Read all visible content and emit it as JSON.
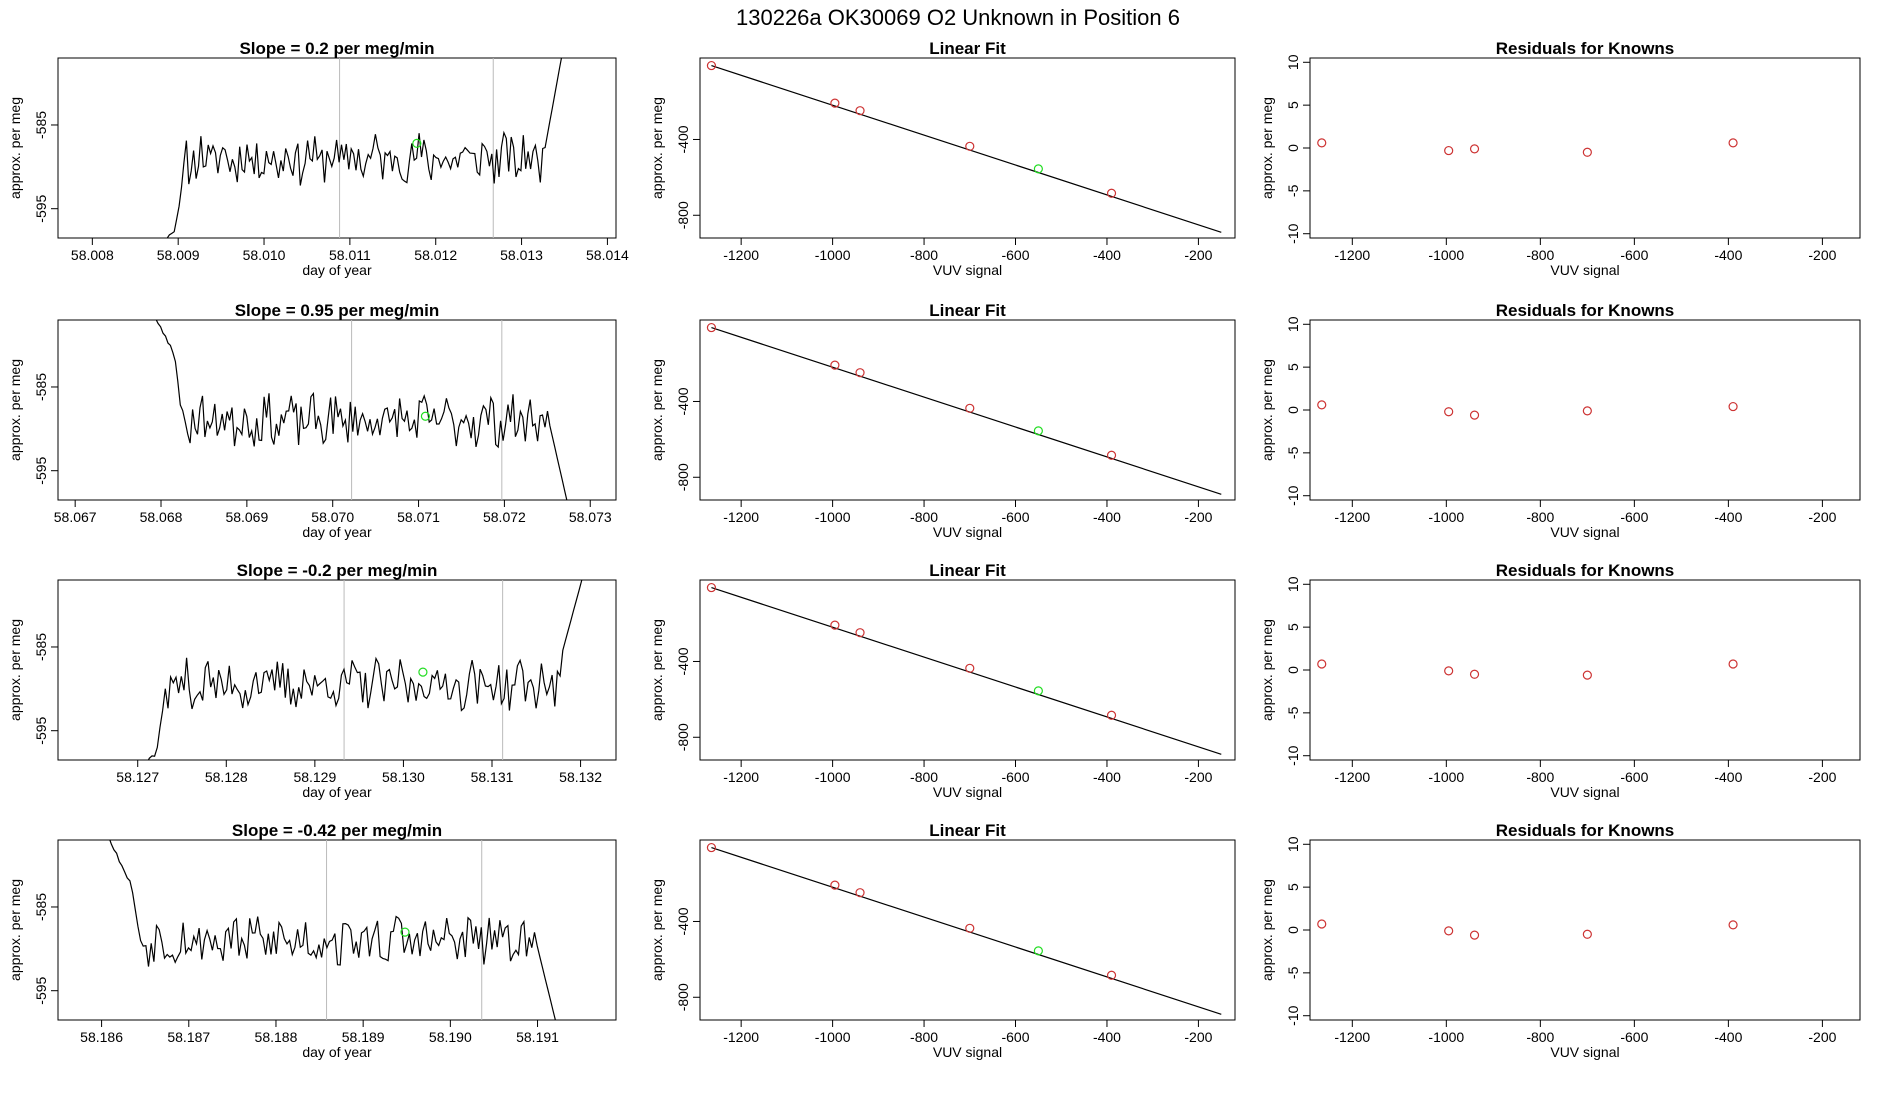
{
  "page": {
    "main_title": "130226a      OK30069    O2 Unknown in Position  6"
  },
  "colors": {
    "line": "#000000",
    "known_point": "#cd3333",
    "unknown_point": "#22dd22",
    "vline": "#bbbbbb"
  },
  "chart_data": [
    {
      "type": "line",
      "row": 0,
      "title": "Slope =  0.2  per meg/min",
      "xlabel": "day of year",
      "ylabel": "approx. per meg",
      "xlim": [
        58.0076,
        58.0141
      ],
      "ylim": [
        -598.5,
        -577
      ],
      "xticks": [
        "58.008",
        "58.009",
        "58.010",
        "58.011",
        "58.012",
        "58.013",
        "58.014"
      ],
      "yticks": [
        "-585",
        "-595"
      ],
      "vlines": [
        58.01088,
        58.01267
      ],
      "unknown_point": [
        58.01178,
        -587.2
      ],
      "start_x": 58.0087,
      "end_x": 58.0135,
      "start_y": [
        -600,
        -596.5
      ],
      "end_y": [
        -588.5,
        -575
      ],
      "base": -589.0,
      "seed": 11
    },
    {
      "type": "line",
      "row": 0,
      "title": "Linear Fit",
      "xlabel": "VUV signal",
      "ylabel": "approx. per meg",
      "xlim": [
        -1290,
        -120
      ],
      "ylim": [
        -920,
        30
      ],
      "xticks": [
        "-1200",
        "-1000",
        "-800",
        "-600",
        "-400",
        "-200"
      ],
      "yticks": [
        "-400",
        "-800"
      ],
      "fit_line": [
        [
          -1265,
          -10
        ],
        [
          -150,
          -890
        ]
      ],
      "knowns": [
        [
          -1265,
          -10
        ],
        [
          -995,
          -208
        ],
        [
          -940,
          -248
        ],
        [
          -700,
          -436
        ],
        [
          -390,
          -684
        ]
      ],
      "unknown": [
        -550,
        -555
      ]
    },
    {
      "type": "scatter",
      "row": 0,
      "title": "Residuals for Knowns",
      "xlabel": "VUV signal",
      "ylabel": "approx. per meg",
      "xlim": [
        -1290,
        -120
      ],
      "ylim": [
        -10.5,
        10.5
      ],
      "xticks": [
        "-1200",
        "-1000",
        "-800",
        "-600",
        "-400",
        "-200"
      ],
      "yticks": [
        "10",
        "5",
        "0",
        "-5",
        "-10"
      ],
      "points": [
        [
          -1265,
          0.6
        ],
        [
          -995,
          -0.3
        ],
        [
          -940,
          -0.1
        ],
        [
          -700,
          -0.5
        ],
        [
          -390,
          0.6
        ]
      ]
    },
    {
      "type": "line",
      "row": 1,
      "title": "Slope =  0.95  per meg/min",
      "xlabel": "day of year",
      "ylabel": "approx. per meg",
      "xlim": [
        58.0668,
        58.0733
      ],
      "ylim": [
        -598.5,
        -577
      ],
      "xticks": [
        "58.067",
        "58.068",
        "58.069",
        "58.070",
        "58.071",
        "58.072",
        "58.073"
      ],
      "yticks": [
        "-585",
        "-595"
      ],
      "vlines": [
        58.07022,
        58.07197
      ],
      "unknown_point": [
        58.07108,
        -588.5
      ],
      "start_x": 58.06788,
      "end_x": 58.07276,
      "start_y": [
        -576,
        -583
      ],
      "end_y": [
        -589,
        -600
      ],
      "base": -589.0,
      "seed": 23
    },
    {
      "type": "line",
      "row": 1,
      "title": "Linear Fit",
      "xlabel": "VUV signal",
      "ylabel": "approx. per meg",
      "xlim": [
        -1290,
        -120
      ],
      "ylim": [
        -920,
        30
      ],
      "xticks": [
        "-1200",
        "-1000",
        "-800",
        "-600",
        "-400",
        "-200"
      ],
      "yticks": [
        "-400",
        "-800"
      ],
      "fit_line": [
        [
          -1265,
          -10
        ],
        [
          -150,
          -890
        ]
      ],
      "knowns": [
        [
          -1265,
          -10
        ],
        [
          -995,
          -208
        ],
        [
          -940,
          -248
        ],
        [
          -700,
          -436
        ],
        [
          -390,
          -684
        ]
      ],
      "unknown": [
        -550,
        -555
      ]
    },
    {
      "type": "scatter",
      "row": 1,
      "title": "Residuals for Knowns",
      "xlabel": "VUV signal",
      "ylabel": "approx. per meg",
      "xlim": [
        -1290,
        -120
      ],
      "ylim": [
        -10.5,
        10.5
      ],
      "xticks": [
        "-1200",
        "-1000",
        "-800",
        "-600",
        "-400",
        "-200"
      ],
      "yticks": [
        "10",
        "5",
        "0",
        "-5",
        "-10"
      ],
      "points": [
        [
          -1265,
          0.6
        ],
        [
          -995,
          -0.2
        ],
        [
          -940,
          -0.6
        ],
        [
          -700,
          -0.1
        ],
        [
          -390,
          0.4
        ]
      ]
    },
    {
      "type": "line",
      "row": 2,
      "title": "Slope =  -0.2  per meg/min",
      "xlabel": "day of year",
      "ylabel": "approx. per meg",
      "xlim": [
        58.1261,
        58.1324
      ],
      "ylim": [
        -598.5,
        -577
      ],
      "xticks": [
        "58.127",
        "58.128",
        "58.129",
        "58.130",
        "58.131",
        "58.132"
      ],
      "yticks": [
        "-585",
        "-595"
      ],
      "vlines": [
        58.12933,
        58.13112
      ],
      "unknown_point": [
        58.13022,
        -588.0
      ],
      "start_x": 58.12692,
      "end_x": 58.13204,
      "start_y": [
        -600,
        -597
      ],
      "end_y": [
        -586,
        -576
      ],
      "base": -589.5,
      "seed": 37
    },
    {
      "type": "line",
      "row": 2,
      "title": "Linear Fit",
      "xlabel": "VUV signal",
      "ylabel": "approx. per meg",
      "xlim": [
        -1290,
        -120
      ],
      "ylim": [
        -920,
        30
      ],
      "xticks": [
        "-1200",
        "-1000",
        "-800",
        "-600",
        "-400",
        "-200"
      ],
      "yticks": [
        "-400",
        "-800"
      ],
      "fit_line": [
        [
          -1265,
          -10
        ],
        [
          -150,
          -890
        ]
      ],
      "knowns": [
        [
          -1265,
          -10
        ],
        [
          -995,
          -208
        ],
        [
          -940,
          -248
        ],
        [
          -700,
          -436
        ],
        [
          -390,
          -684
        ]
      ],
      "unknown": [
        -550,
        -555
      ]
    },
    {
      "type": "scatter",
      "row": 2,
      "title": "Residuals for Knowns",
      "xlabel": "VUV signal",
      "ylabel": "approx. per meg",
      "xlim": [
        -1290,
        -120
      ],
      "ylim": [
        -10.5,
        10.5
      ],
      "xticks": [
        "-1200",
        "-1000",
        "-800",
        "-600",
        "-400",
        "-200"
      ],
      "yticks": [
        "10",
        "5",
        "0",
        "-5",
        "-10"
      ],
      "points": [
        [
          -1265,
          0.7
        ],
        [
          -995,
          -0.1
        ],
        [
          -940,
          -0.5
        ],
        [
          -700,
          -0.6
        ],
        [
          -390,
          0.7
        ]
      ]
    },
    {
      "type": "line",
      "row": 3,
      "title": "Slope =  -0.42  per meg/min",
      "xlabel": "day of year",
      "ylabel": "approx. per meg",
      "xlim": [
        58.1855,
        58.1919
      ],
      "ylim": [
        -598.5,
        -577
      ],
      "xticks": [
        "58.186",
        "58.187",
        "58.188",
        "58.189",
        "58.190",
        "58.191"
      ],
      "yticks": [
        "-585",
        "-595"
      ],
      "vlines": [
        58.18858,
        58.19036
      ],
      "unknown_point": [
        58.18948,
        -588.0
      ],
      "start_x": 58.18605,
      "end_x": 58.19124,
      "start_y": [
        -576,
        -585
      ],
      "end_y": [
        -589,
        -600
      ],
      "base": -589.0,
      "seed": 53
    },
    {
      "type": "line",
      "row": 3,
      "title": "Linear Fit",
      "xlabel": "VUV signal",
      "ylabel": "approx. per meg",
      "xlim": [
        -1290,
        -120
      ],
      "ylim": [
        -920,
        30
      ],
      "xticks": [
        "-1200",
        "-1000",
        "-800",
        "-600",
        "-400",
        "-200"
      ],
      "yticks": [
        "-400",
        "-800"
      ],
      "fit_line": [
        [
          -1265,
          -10
        ],
        [
          -150,
          -890
        ]
      ],
      "knowns": [
        [
          -1265,
          -10
        ],
        [
          -995,
          -208
        ],
        [
          -940,
          -248
        ],
        [
          -700,
          -436
        ],
        [
          -390,
          -684
        ]
      ],
      "unknown": [
        -550,
        -555
      ]
    },
    {
      "type": "scatter",
      "row": 3,
      "title": "Residuals for Knowns",
      "xlabel": "VUV signal",
      "ylabel": "approx. per meg",
      "xlim": [
        -1290,
        -120
      ],
      "ylim": [
        -10.5,
        10.5
      ],
      "xticks": [
        "-1200",
        "-1000",
        "-800",
        "-600",
        "-400",
        "-200"
      ],
      "yticks": [
        "10",
        "5",
        "0",
        "-5",
        "-10"
      ],
      "points": [
        [
          -1265,
          0.7
        ],
        [
          -995,
          -0.1
        ],
        [
          -940,
          -0.6
        ],
        [
          -700,
          -0.5
        ],
        [
          -390,
          0.6
        ]
      ]
    }
  ]
}
